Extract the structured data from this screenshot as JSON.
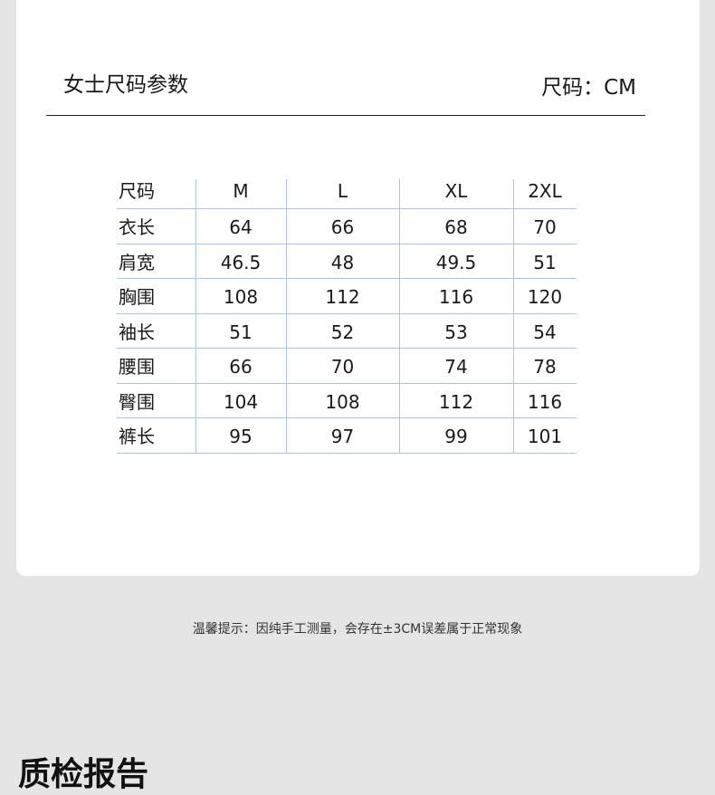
{
  "header": {
    "title": "女士尺码参数",
    "unit": "尺码：CM"
  },
  "table": {
    "columns": [
      "尺码",
      "M",
      "L",
      "XL",
      "2XL"
    ],
    "rows": [
      [
        "衣长",
        "64",
        "66",
        "68",
        "70"
      ],
      [
        "肩宽",
        "46.5",
        "48",
        "49.5",
        "51"
      ],
      [
        "胸围",
        "108",
        "112",
        "116",
        "120"
      ],
      [
        "袖长",
        "51",
        "52",
        "53",
        "54"
      ],
      [
        "腰围",
        "66",
        "70",
        "74",
        "78"
      ],
      [
        "臀围",
        "104",
        "108",
        "112",
        "116"
      ],
      [
        "裤长",
        "95",
        "97",
        "99",
        "101"
      ]
    ]
  },
  "note": "温馨提示：因纯手工测量，会存在±3CM误差属于正常现象",
  "next_section": {
    "title": "质检报告"
  }
}
